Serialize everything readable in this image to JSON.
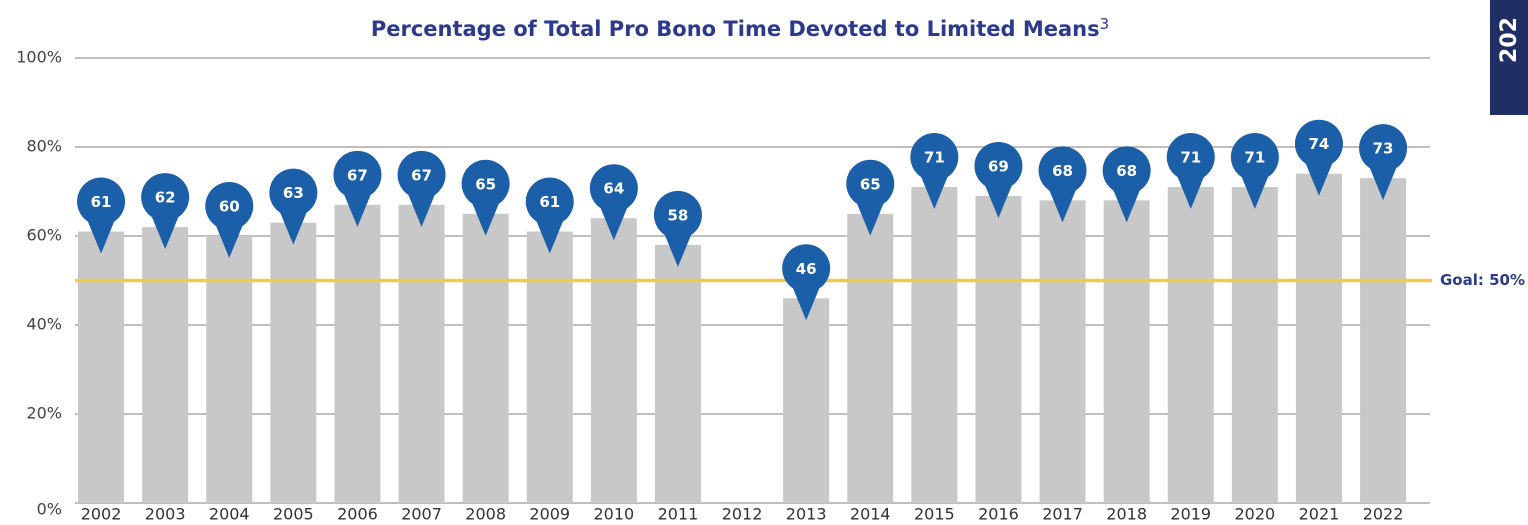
{
  "chart_data": {
    "type": "bar",
    "title": "Percentage of Total Pro Bono Time Devoted to Limited Means",
    "title_superscript": "3",
    "categories": [
      "2002",
      "2003",
      "2004",
      "2005",
      "2006",
      "2007",
      "2008",
      "2009",
      "2010",
      "2011",
      "2012",
      "2013",
      "2014",
      "2015",
      "2016",
      "2017",
      "2018",
      "2019",
      "2020",
      "2021",
      "2022"
    ],
    "values": [
      61,
      62,
      60,
      63,
      67,
      67,
      65,
      61,
      64,
      58,
      null,
      46,
      65,
      71,
      69,
      68,
      68,
      71,
      71,
      74,
      73
    ],
    "color": "#c8c8c9",
    "label_color": "#1b5fa8",
    "ylim": [
      0,
      100
    ],
    "yticks": [
      {
        "value": 0,
        "label": "0%"
      },
      {
        "value": 20,
        "label": "20%"
      },
      {
        "value": 40,
        "label": "40%"
      },
      {
        "value": 60,
        "label": "60%"
      },
      {
        "value": 80,
        "label": "80%"
      },
      {
        "value": 100,
        "label": "100%"
      }
    ],
    "grid": true,
    "goal": {
      "value": 50,
      "label": "Goal: 50%",
      "color": "#f2c94c"
    }
  },
  "side_tab": "202"
}
